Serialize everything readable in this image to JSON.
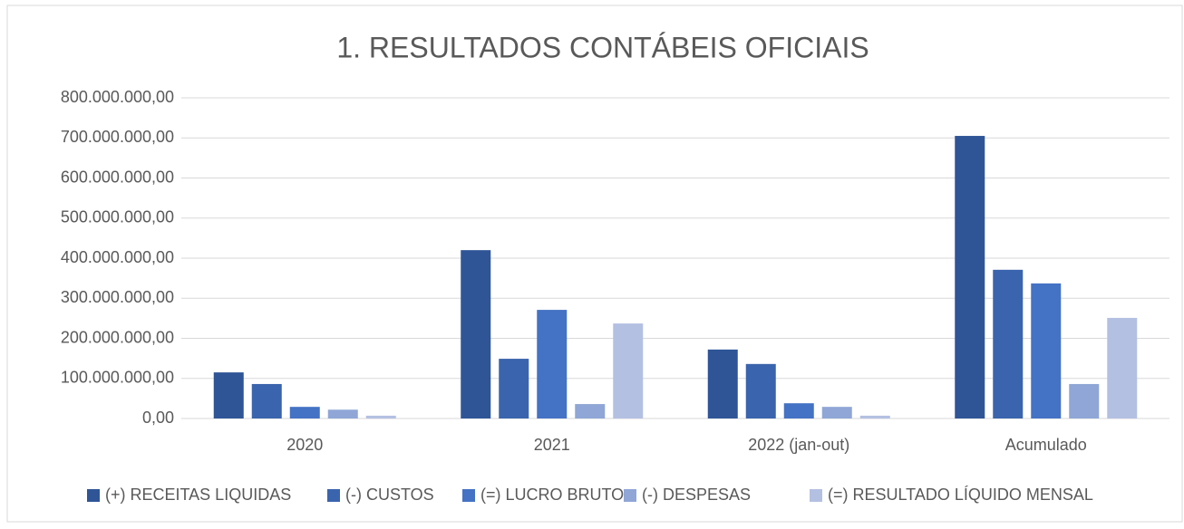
{
  "chart_data": {
    "type": "bar",
    "title": "1. RESULTADOS CONTÁBEIS OFICIAIS",
    "categories": [
      "2020",
      "2021",
      "2022 (jan-out)",
      "Acumulado"
    ],
    "series": [
      {
        "name": "(+) RECEITAS LIQUIDAS",
        "color": "#2f5597",
        "values": [
          115000000,
          420000000,
          172000000,
          705000000
        ]
      },
      {
        "name": "(-) CUSTOS",
        "color": "#3a64ad",
        "values": [
          86000000,
          149000000,
          136000000,
          371000000
        ]
      },
      {
        "name": "(=) LUCRO BRUTO",
        "color": "#4472c4",
        "values": [
          29000000,
          271000000,
          38000000,
          337000000
        ]
      },
      {
        "name": "(-) DESPESAS",
        "color": "#8fa6d6",
        "values": [
          22000000,
          36000000,
          29000000,
          86000000
        ]
      },
      {
        "name": "(=) RESULTADO LÍQUIDO MENSAL",
        "color": "#b4c0e2",
        "values": [
          7000000,
          237000000,
          7000000,
          251000000
        ]
      }
    ],
    "ylim": [
      0,
      800000000
    ],
    "yticks": [
      {
        "value": 0,
        "label": "0,00"
      },
      {
        "value": 100000000,
        "label": "100.000.000,00"
      },
      {
        "value": 200000000,
        "label": "200.000.000,00"
      },
      {
        "value": 300000000,
        "label": "300.000.000,00"
      },
      {
        "value": 400000000,
        "label": "400.000.000,00"
      },
      {
        "value": 500000000,
        "label": "500.000.000,00"
      },
      {
        "value": 600000000,
        "label": "600.000.000,00"
      },
      {
        "value": 700000000,
        "label": "700.000.000,00"
      },
      {
        "value": 800000000,
        "label": "800.000.000,00"
      }
    ],
    "grid": true,
    "legend": "bottom"
  }
}
